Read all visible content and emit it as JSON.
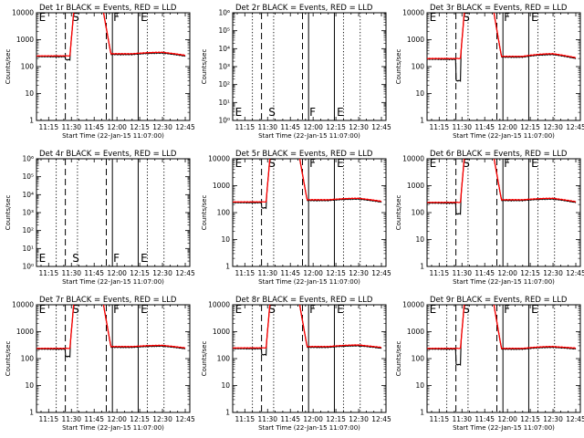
{
  "chart_data": [
    {
      "type": "line",
      "title": "Det 1r BLACK = Events, RED = LLD",
      "xlabel": "Start Time (22-Jan-15 11:07:00)",
      "ylabel": "Counts/sec",
      "log_y": true,
      "ylim": [
        1,
        10000
      ],
      "x_ticks": [
        "11:15",
        "11:30",
        "11:45",
        "12:00",
        "12:15",
        "12:30",
        "12:45"
      ],
      "y_ticks": [
        "1",
        "10",
        "100",
        "1000",
        "10000"
      ],
      "empty": false,
      "zone_labels": [
        "E",
        "S",
        "F",
        "E"
      ],
      "levels": {
        "quiet1": 250,
        "quiet2": 300,
        "quiet3": 340,
        "dip": 180
      },
      "series": [
        {
          "name": "Events",
          "color": "#000000"
        },
        {
          "name": "LLD",
          "color": "#ff0000"
        }
      ]
    },
    {
      "type": "line",
      "title": "Det 2r BLACK = Events, RED = LLD",
      "xlabel": "Start Time (22-Jan-15 11:07:00)",
      "ylabel": "Counts/sec",
      "log_y": true,
      "ylim": [
        1,
        1000000
      ],
      "x_ticks": [
        "11:15",
        "11:30",
        "11:45",
        "12:00",
        "12:15",
        "12:30",
        "12:45"
      ],
      "y_ticks": [
        "10⁰",
        "10¹",
        "10²",
        "10³",
        "10⁴",
        "10⁵",
        "10⁶"
      ],
      "empty": true,
      "zone_labels": [
        "E",
        "S",
        "F",
        "E"
      ],
      "levels": null,
      "series": []
    },
    {
      "type": "line",
      "title": "Det 3r BLACK = Events, RED = LLD",
      "xlabel": "Start Time (22-Jan-15 11:07:00)",
      "ylabel": "Counts/sec",
      "log_y": true,
      "ylim": [
        1,
        10000
      ],
      "x_ticks": [
        "11:15",
        "11:30",
        "11:45",
        "12:00",
        "12:15",
        "12:30",
        "12:45"
      ],
      "y_ticks": [
        "1",
        "10",
        "100",
        "1000",
        "10000"
      ],
      "empty": false,
      "zone_labels": [
        "E",
        "S",
        "F",
        "E"
      ],
      "levels": {
        "quiet1": 200,
        "quiet2": 240,
        "quiet3": 300,
        "dip": 30
      },
      "series": [
        {
          "name": "Events",
          "color": "#000000"
        },
        {
          "name": "LLD",
          "color": "#ff0000"
        }
      ]
    },
    {
      "type": "line",
      "title": "Det 4r BLACK = Events, RED = LLD",
      "xlabel": "Start Time (22-Jan-15 11:07:00)",
      "ylabel": "Counts/sec",
      "log_y": true,
      "ylim": [
        1,
        1000000
      ],
      "x_ticks": [
        "11:15",
        "11:30",
        "11:45",
        "12:00",
        "12:15",
        "12:30",
        "12:45"
      ],
      "y_ticks": [
        "10⁰",
        "10¹",
        "10²",
        "10³",
        "10⁴",
        "10⁵",
        "10⁶"
      ],
      "empty": true,
      "zone_labels": [
        "E",
        "S",
        "F",
        "E"
      ],
      "levels": null,
      "series": []
    },
    {
      "type": "line",
      "title": "Det 5r BLACK = Events, RED = LLD",
      "xlabel": "Start Time (22-Jan-15 11:07:00)",
      "ylabel": "Counts/sec",
      "log_y": true,
      "ylim": [
        1,
        10000
      ],
      "x_ticks": [
        "11:15",
        "11:30",
        "11:45",
        "12:00",
        "12:15",
        "12:30",
        "12:45"
      ],
      "y_ticks": [
        "1",
        "10",
        "100",
        "1000",
        "10000"
      ],
      "empty": false,
      "zone_labels": [
        "E",
        "S",
        "F",
        "E"
      ],
      "levels": {
        "quiet1": 250,
        "quiet2": 300,
        "quiet3": 340,
        "dip": 150
      },
      "series": [
        {
          "name": "Events",
          "color": "#000000"
        },
        {
          "name": "LLD",
          "color": "#ff0000"
        }
      ]
    },
    {
      "type": "line",
      "title": "Det 6r BLACK = Events, RED = LLD",
      "xlabel": "Start Time (22-Jan-15 11:07:00)",
      "ylabel": "Counts/sec",
      "log_y": true,
      "ylim": [
        1,
        10000
      ],
      "x_ticks": [
        "11:15",
        "11:30",
        "11:45",
        "12:00",
        "12:15",
        "12:30",
        "12:45"
      ],
      "y_ticks": [
        "1",
        "10",
        "100",
        "1000",
        "10000"
      ],
      "empty": false,
      "zone_labels": [
        "E",
        "S",
        "F",
        "E"
      ],
      "levels": {
        "quiet1": 240,
        "quiet2": 300,
        "quiet3": 340,
        "dip": 90
      },
      "series": [
        {
          "name": "Events",
          "color": "#000000"
        },
        {
          "name": "LLD",
          "color": "#ff0000"
        }
      ]
    },
    {
      "type": "line",
      "title": "Det 7r BLACK = Events, RED = LLD",
      "xlabel": "Start Time (22-Jan-15 11:07:00)",
      "ylabel": "Counts/sec",
      "log_y": true,
      "ylim": [
        1,
        10000
      ],
      "x_ticks": [
        "11:15",
        "11:30",
        "11:45",
        "12:00",
        "12:15",
        "12:30",
        "12:45"
      ],
      "y_ticks": [
        "1",
        "10",
        "100",
        "1000",
        "10000"
      ],
      "empty": false,
      "zone_labels": [
        "E",
        "S",
        "F",
        "E"
      ],
      "levels": {
        "quiet1": 240,
        "quiet2": 280,
        "quiet3": 310,
        "dip": 120
      },
      "series": [
        {
          "name": "Events",
          "color": "#000000"
        },
        {
          "name": "LLD",
          "color": "#ff0000"
        }
      ]
    },
    {
      "type": "line",
      "title": "Det 8r BLACK = Events, RED = LLD",
      "xlabel": "Start Time (22-Jan-15 11:07:00)",
      "ylabel": "Counts/sec",
      "log_y": true,
      "ylim": [
        1,
        10000
      ],
      "x_ticks": [
        "11:15",
        "11:30",
        "11:45",
        "12:00",
        "12:15",
        "12:30",
        "12:45"
      ],
      "y_ticks": [
        "1",
        "10",
        "100",
        "1000",
        "10000"
      ],
      "empty": false,
      "zone_labels": [
        "E",
        "S",
        "F",
        "E"
      ],
      "levels": {
        "quiet1": 250,
        "quiet2": 280,
        "quiet3": 320,
        "dip": 140
      },
      "series": [
        {
          "name": "Events",
          "color": "#000000"
        },
        {
          "name": "LLD",
          "color": "#ff0000"
        }
      ]
    },
    {
      "type": "line",
      "title": "Det 9r BLACK = Events, RED = LLD",
      "xlabel": "Start Time (22-Jan-15 11:07:00)",
      "ylabel": "Counts/sec",
      "log_y": true,
      "ylim": [
        1,
        10000
      ],
      "x_ticks": [
        "11:15",
        "11:30",
        "11:45",
        "12:00",
        "12:15",
        "12:30",
        "12:45"
      ],
      "y_ticks": [
        "1",
        "10",
        "100",
        "1000",
        "10000"
      ],
      "empty": false,
      "zone_labels": [
        "E",
        "S",
        "F",
        "E"
      ],
      "levels": {
        "quiet1": 240,
        "quiet2": 240,
        "quiet3": 280,
        "dip": 60
      },
      "series": [
        {
          "name": "Events",
          "color": "#000000"
        },
        {
          "name": "LLD",
          "color": "#ff0000"
        }
      ]
    }
  ],
  "time_axis": {
    "tick_times_min": [
      15,
      30,
      45,
      60,
      75,
      90,
      105
    ],
    "range_min": [
      7,
      108
    ],
    "dotted_lines_min": [
      20,
      34,
      80,
      91
    ],
    "dashed_lines_min": [
      26,
      53
    ],
    "solid_lines_min": [
      57,
      74
    ],
    "zone_label_times_min": [
      8,
      30,
      57,
      75
    ],
    "flare_min": [
      29,
      51
    ]
  }
}
